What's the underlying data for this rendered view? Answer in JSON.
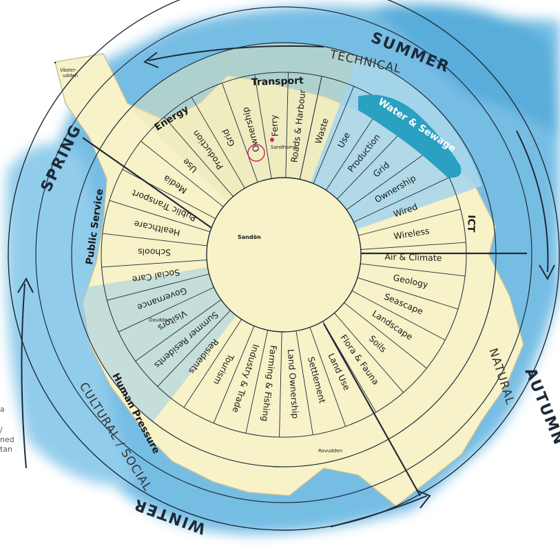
{
  "colors": {
    "water": "#4aa6d8",
    "land": "#f7f2c8",
    "social_wedge": "#cfe3f0",
    "water_sewage_wedge": "#a9d6ea",
    "brush_accent": "#2aa0c2",
    "line": "#1e2a38"
  },
  "seasons": [
    "SUMMER",
    "AUTUMN",
    "WINTER",
    "SPRING"
  ],
  "domains": {
    "technical": "TECHNICAL",
    "natural": "NATURAL",
    "cultural_social": "CULTURAL / SOCIAL"
  },
  "center_label": "Sandön",
  "categories": {
    "energy": "Energy",
    "transport": "Transport",
    "water_sewage": "Water & Sewage",
    "ict": "ICT",
    "public_service": "Public Service",
    "human_pressure": "Human Pressure"
  },
  "segments": [
    "Waste",
    "Use",
    "Production",
    "Grid",
    "Ownership",
    "Wired",
    "Wireless",
    "Air & Climate",
    "Geology",
    "Seascape",
    "Landscape",
    "Soils",
    "Flora & Fauna",
    "Land Use",
    "Settlement",
    "Land Ownership",
    "Farming & Fishing",
    "Industry & Trade",
    "Tourism",
    "Residents",
    "Summer Residents",
    "Visitors",
    "Governance",
    "Social Care",
    "Schools",
    "Healthcare",
    "Public Transport",
    "Media",
    "Use",
    "Production",
    "Grid",
    "Ownership",
    "Ferry",
    "Roads & Harbour"
  ],
  "place_names": {
    "vasterudden_1": "Väster-",
    "vasterudden_2": "udden",
    "sandhamn": "Sandhamn",
    "oxudden": "Oxudden",
    "rovudden": "Rovudden"
  },
  "left_text_fragments": [
    "a",
    "/",
    "ned",
    "tan"
  ]
}
